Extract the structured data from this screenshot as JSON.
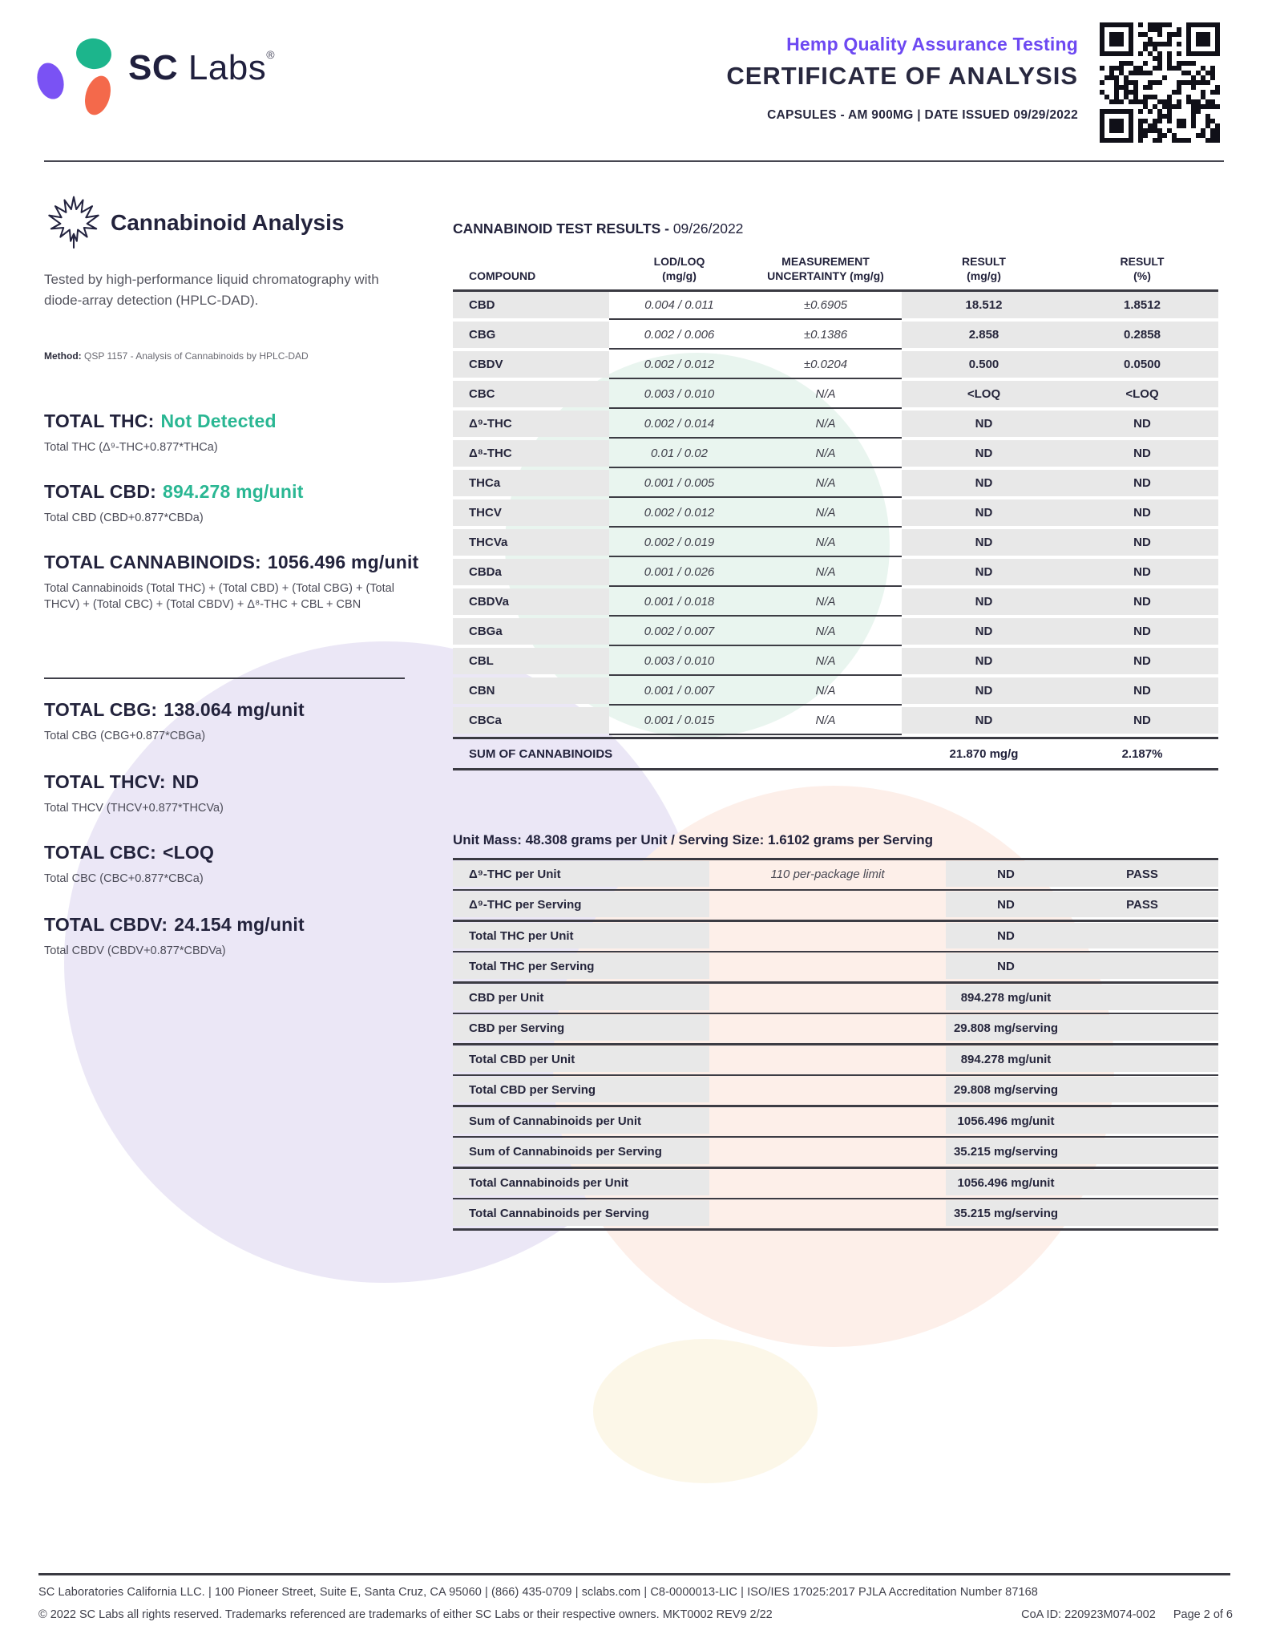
{
  "colors": {
    "accent_green": "#2ab793",
    "accent_purple": "#6d49f2",
    "navy": "#23233c",
    "table_grey": "#e8e8e8"
  },
  "header": {
    "brand_sc": "SC",
    "brand_labs": "Labs",
    "brand_reg": "®",
    "subtitle": "Hemp Quality Assurance Testing",
    "title": "CERTIFICATE OF ANALYSIS",
    "meta": "CAPSULES - AM 900MG  |  DATE ISSUED 09/29/2022"
  },
  "left": {
    "section_title": "Cannabinoid Analysis",
    "description": "Tested by high-performance liquid chromatography with diode-array detection (HPLC-DAD).",
    "method_label": "Method:",
    "method_value": "QSP 1157 - Analysis of Cannabinoids by HPLC-DAD",
    "totals": [
      {
        "label": "TOTAL THC:",
        "value": "Not Detected",
        "style": "green",
        "formula": "Total THC (Δ⁹-THC+0.877*THCa)"
      },
      {
        "label": "TOTAL CBD:",
        "value": "894.278 mg/unit",
        "style": "green",
        "formula": "Total CBD (CBD+0.877*CBDa)"
      },
      {
        "label": "TOTAL CANNABINOIDS:",
        "value": "1056.496 mg/unit",
        "style": "dark",
        "formula": "Total Cannabinoids (Total THC) + (Total CBD) + (Total CBG) + (Total THCV) + (Total CBC) + (Total CBDV) + Δ⁸-THC + CBL + CBN"
      },
      {
        "label": "TOTAL CBG:",
        "value": "138.064 mg/unit",
        "style": "dark",
        "formula": "Total CBG (CBG+0.877*CBGa)"
      },
      {
        "label": "TOTAL THCV:",
        "value": "ND",
        "style": "dark",
        "formula": "Total THCV (THCV+0.877*THCVa)"
      },
      {
        "label": "TOTAL CBC:",
        "value": "<LOQ",
        "style": "dark",
        "formula": "Total CBC (CBC+0.877*CBCa)"
      },
      {
        "label": "TOTAL CBDV:",
        "value": "24.154 mg/unit",
        "style": "dark",
        "formula": "Total CBDV (CBDV+0.877*CBDVa)"
      }
    ]
  },
  "results": {
    "title": "CANNABINOID TEST RESULTS -",
    "date": "09/26/2022",
    "columns": [
      {
        "l1": "COMPOUND",
        "l2": ""
      },
      {
        "l1": "LOD/LOQ",
        "l2": "(mg/g)"
      },
      {
        "l1": "MEASUREMENT",
        "l2": "UNCERTAINTY (mg/g)"
      },
      {
        "l1": "RESULT",
        "l2": "(mg/g)"
      },
      {
        "l1": "RESULT",
        "l2": "(%)"
      }
    ],
    "rows": [
      {
        "compound": "CBD",
        "lod_loq": "0.004 / 0.011",
        "uncertainty": "±0.6905",
        "result_mgg": "18.512",
        "result_pct": "1.8512"
      },
      {
        "compound": "CBG",
        "lod_loq": "0.002 / 0.006",
        "uncertainty": "±0.1386",
        "result_mgg": "2.858",
        "result_pct": "0.2858"
      },
      {
        "compound": "CBDV",
        "lod_loq": "0.002 / 0.012",
        "uncertainty": "±0.0204",
        "result_mgg": "0.500",
        "result_pct": "0.0500"
      },
      {
        "compound": "CBC",
        "lod_loq": "0.003 / 0.010",
        "uncertainty": "N/A",
        "result_mgg": "<LOQ",
        "result_pct": "<LOQ"
      },
      {
        "compound": "Δ⁹-THC",
        "lod_loq": "0.002 / 0.014",
        "uncertainty": "N/A",
        "result_mgg": "ND",
        "result_pct": "ND"
      },
      {
        "compound": "Δ⁸-THC",
        "lod_loq": "0.01 / 0.02",
        "uncertainty": "N/A",
        "result_mgg": "ND",
        "result_pct": "ND"
      },
      {
        "compound": "THCa",
        "lod_loq": "0.001 / 0.005",
        "uncertainty": "N/A",
        "result_mgg": "ND",
        "result_pct": "ND"
      },
      {
        "compound": "THCV",
        "lod_loq": "0.002 / 0.012",
        "uncertainty": "N/A",
        "result_mgg": "ND",
        "result_pct": "ND"
      },
      {
        "compound": "THCVa",
        "lod_loq": "0.002 / 0.019",
        "uncertainty": "N/A",
        "result_mgg": "ND",
        "result_pct": "ND"
      },
      {
        "compound": "CBDa",
        "lod_loq": "0.001 / 0.026",
        "uncertainty": "N/A",
        "result_mgg": "ND",
        "result_pct": "ND"
      },
      {
        "compound": "CBDVa",
        "lod_loq": "0.001 / 0.018",
        "uncertainty": "N/A",
        "result_mgg": "ND",
        "result_pct": "ND"
      },
      {
        "compound": "CBGa",
        "lod_loq": "0.002 / 0.007",
        "uncertainty": "N/A",
        "result_mgg": "ND",
        "result_pct": "ND"
      },
      {
        "compound": "CBL",
        "lod_loq": "0.003 / 0.010",
        "uncertainty": "N/A",
        "result_mgg": "ND",
        "result_pct": "ND"
      },
      {
        "compound": "CBN",
        "lod_loq": "0.001 / 0.007",
        "uncertainty": "N/A",
        "result_mgg": "ND",
        "result_pct": "ND"
      },
      {
        "compound": "CBCa",
        "lod_loq": "0.001 / 0.015",
        "uncertainty": "N/A",
        "result_mgg": "ND",
        "result_pct": "ND"
      }
    ],
    "sum_label": "SUM OF CANNABINOIDS",
    "sum_mgg": "21.870 mg/g",
    "sum_pct": "2.187%"
  },
  "unit_table": {
    "heading": "Unit Mass: 48.308 grams per Unit / Serving Size: 1.6102 grams per Serving",
    "rows": [
      {
        "label": "Δ⁹-THC per Unit",
        "limit": "110 per-package limit",
        "value": "ND",
        "status": "PASS"
      },
      {
        "label": "Δ⁹-THC per Serving",
        "limit": "",
        "value": "ND",
        "status": "PASS"
      },
      {
        "label": "Total THC per Unit",
        "limit": "",
        "value": "ND",
        "status": ""
      },
      {
        "label": "Total THC per Serving",
        "limit": "",
        "value": "ND",
        "status": ""
      },
      {
        "label": "CBD per Unit",
        "limit": "",
        "value": "894.278 mg/unit",
        "status": ""
      },
      {
        "label": "CBD per Serving",
        "limit": "",
        "value": "29.808 mg/serving",
        "status": ""
      },
      {
        "label": "Total CBD per Unit",
        "limit": "",
        "value": "894.278 mg/unit",
        "status": ""
      },
      {
        "label": "Total CBD per Serving",
        "limit": "",
        "value": "29.808 mg/serving",
        "status": ""
      },
      {
        "label": "Sum of Cannabinoids per Unit",
        "limit": "",
        "value": "1056.496 mg/unit",
        "status": ""
      },
      {
        "label": "Sum of Cannabinoids per Serving",
        "limit": "",
        "value": "35.215 mg/serving",
        "status": ""
      },
      {
        "label": "Total Cannabinoids per Unit",
        "limit": "",
        "value": "1056.496 mg/unit",
        "status": ""
      },
      {
        "label": "Total Cannabinoids per Serving",
        "limit": "",
        "value": "35.215 mg/serving",
        "status": ""
      }
    ]
  },
  "footer": {
    "line1": "SC Laboratories California LLC. | 100 Pioneer Street, Suite E, Santa Cruz, CA 95060 | (866) 435-0709 | sclabs.com | C8-0000013-LIC | ISO/IES 17025:2017 PJLA Accreditation Number 87168",
    "line2": "© 2022 SC Labs all rights reserved. Trademarks referenced are trademarks of either SC Labs or their respective owners. MKT0002 REV9 2/22",
    "coa_id": "CoA ID: 220923M074-002",
    "page": "Page 2 of 6"
  }
}
